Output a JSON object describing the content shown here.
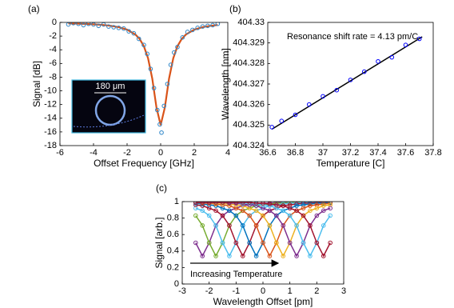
{
  "chart_data": [
    {
      "type": "scatter",
      "label": "(a)",
      "xlabel": "Offset Frequency [GHz]",
      "ylabel": "Signal [dB]",
      "xlim": [
        -6,
        4
      ],
      "xticks": [
        -6,
        -4,
        -2,
        0,
        2,
        4
      ],
      "ylim": [
        -18,
        0
      ],
      "yticks": [
        0,
        -2,
        -4,
        -6,
        -8,
        -10,
        -12,
        -14,
        -16,
        -18
      ],
      "inset_label": "180 μm",
      "series": [
        {
          "type": "line",
          "color": "#d95319",
          "x": [
            -5.5,
            -5,
            -4.5,
            -4,
            -3.5,
            -3,
            -2.5,
            -2,
            -1.5,
            -1.25,
            -1,
            -0.75,
            -0.5,
            -0.25,
            0,
            0.25,
            0.5,
            0.75,
            1,
            1.25,
            1.5,
            2,
            2.5,
            3,
            3.4
          ],
          "values": [
            -0.15,
            -0.18,
            -0.22,
            -0.28,
            -0.36,
            -0.49,
            -0.69,
            -1.06,
            -1.78,
            -2.43,
            -3.48,
            -5.25,
            -8.21,
            -12.43,
            -15,
            -12.43,
            -8.21,
            -5.25,
            -3.48,
            -2.43,
            -1.78,
            -1.06,
            -0.69,
            -0.49,
            -0.38
          ]
        },
        {
          "type": "scatter",
          "color": "#2e86c8",
          "x": [
            -5.5,
            -5.2,
            -4.9,
            -4.6,
            -4.3,
            -4.0,
            -3.7,
            -3.4,
            -3.1,
            -2.8,
            -2.5,
            -2.2,
            -1.9,
            -1.6,
            -1.3,
            -1.0,
            -0.8,
            -0.6,
            -0.4,
            -0.2,
            -0.05,
            0.05,
            0.2,
            0.4,
            0.6,
            0.8,
            1.0,
            1.3,
            1.6,
            1.9,
            2.2,
            2.5,
            2.8,
            3.1,
            3.4
          ],
          "values": [
            -0.3,
            -0.1,
            -0.2,
            -0.4,
            -0.2,
            -0.3,
            -0.5,
            -0.3,
            -0.6,
            -0.7,
            -0.8,
            -0.9,
            -1.3,
            -1.6,
            -2.4,
            -3.3,
            -4.6,
            -6.8,
            -9.6,
            -12.8,
            -14.9,
            -16.1,
            -12.2,
            -9.0,
            -6.2,
            -4.4,
            -3.6,
            -2.2,
            -1.4,
            -1.1,
            -0.8,
            -0.6,
            -0.5,
            -0.4,
            -0.2
          ]
        }
      ]
    },
    {
      "type": "scatter",
      "label": "(b)",
      "xlabel": "Temperature [C]",
      "ylabel": "Wavelength [nm]",
      "xlim": [
        36.6,
        37.8
      ],
      "xticks": [
        36.6,
        36.8,
        37,
        37.2,
        37.4,
        37.6,
        37.8
      ],
      "ylim": [
        404.324,
        404.33
      ],
      "yticks": [
        404.324,
        404.325,
        404.326,
        404.327,
        404.328,
        404.329,
        404.33
      ],
      "annotation": "Resonance shift rate = 4.13 pm/C",
      "series": [
        {
          "type": "line",
          "color": "#000000",
          "x": [
            36.63,
            37.72
          ],
          "values": [
            404.3248,
            404.3293
          ]
        },
        {
          "type": "scatter",
          "color": "#0000ff",
          "x": [
            36.63,
            36.7,
            36.8,
            36.9,
            37.0,
            37.1,
            37.2,
            37.3,
            37.4,
            37.5,
            37.6,
            37.7
          ],
          "values": [
            404.3249,
            404.3252,
            404.3255,
            404.326,
            404.3264,
            404.3267,
            404.3272,
            404.3276,
            404.3281,
            404.3283,
            404.3289,
            404.3292
          ]
        }
      ]
    },
    {
      "type": "line",
      "label": "(c)",
      "xlabel": "Wavelength Offset [pm]",
      "ylabel": "Signal [arb.]",
      "xlim": [
        -3,
        3
      ],
      "xticks": [
        -3,
        -2,
        -1,
        0,
        1,
        2,
        3
      ],
      "ylim": [
        0,
        1
      ],
      "yticks": [
        0,
        0.2,
        0.4,
        0.6,
        0.8,
        1
      ],
      "annotation": "Increasing Temperature",
      "markers": true,
      "x": [
        -2.5,
        -2.25,
        -2,
        -1.75,
        -1.5,
        -1.25,
        -1,
        -0.75,
        -0.5,
        -0.25,
        0,
        0.25,
        0.5,
        0.75,
        1,
        1.25,
        1.5,
        1.75,
        2,
        2.25,
        2.5
      ],
      "series": [
        {
          "color": "#7e2f8e",
          "values": [
            0.5,
            0.34,
            0.5,
            0.71,
            0.83,
            0.89,
            0.92,
            0.95,
            0.96,
            0.97,
            0.98,
            0.98,
            0.99,
            0.99,
            0.99,
            0.99,
            0.99,
            0.99,
            0.99,
            0.99,
            0.99
          ]
        },
        {
          "color": "#77ac30",
          "values": [
            0.83,
            0.71,
            0.5,
            0.34,
            0.5,
            0.71,
            0.83,
            0.89,
            0.92,
            0.95,
            0.96,
            0.97,
            0.98,
            0.98,
            0.99,
            0.99,
            0.99,
            0.99,
            0.99,
            0.99,
            0.99
          ]
        },
        {
          "color": "#4dbeee",
          "values": [
            0.92,
            0.89,
            0.83,
            0.71,
            0.5,
            0.34,
            0.5,
            0.71,
            0.83,
            0.89,
            0.92,
            0.95,
            0.96,
            0.97,
            0.98,
            0.98,
            0.99,
            0.99,
            0.99,
            0.99,
            0.99
          ]
        },
        {
          "color": "#a2142f",
          "values": [
            0.96,
            0.95,
            0.92,
            0.89,
            0.83,
            0.71,
            0.5,
            0.34,
            0.5,
            0.71,
            0.83,
            0.89,
            0.92,
            0.95,
            0.96,
            0.97,
            0.98,
            0.98,
            0.99,
            0.99,
            0.99
          ]
        },
        {
          "color": "#0072bd",
          "values": [
            0.98,
            0.97,
            0.96,
            0.95,
            0.92,
            0.89,
            0.83,
            0.71,
            0.5,
            0.34,
            0.5,
            0.71,
            0.83,
            0.89,
            0.92,
            0.95,
            0.96,
            0.97,
            0.98,
            0.98,
            0.99
          ]
        },
        {
          "color": "#d95319",
          "values": [
            0.99,
            0.98,
            0.98,
            0.97,
            0.96,
            0.95,
            0.92,
            0.89,
            0.83,
            0.71,
            0.5,
            0.34,
            0.5,
            0.71,
            0.83,
            0.89,
            0.92,
            0.95,
            0.96,
            0.97,
            0.98
          ]
        },
        {
          "color": "#edb120",
          "values": [
            0.99,
            0.99,
            0.99,
            0.98,
            0.98,
            0.97,
            0.96,
            0.95,
            0.92,
            0.89,
            0.83,
            0.71,
            0.5,
            0.34,
            0.5,
            0.71,
            0.83,
            0.89,
            0.92,
            0.95,
            0.96
          ]
        },
        {
          "color": "#7e2f8e",
          "values": [
            0.99,
            0.99,
            0.99,
            0.99,
            0.99,
            0.98,
            0.98,
            0.97,
            0.96,
            0.95,
            0.92,
            0.89,
            0.83,
            0.71,
            0.5,
            0.34,
            0.5,
            0.71,
            0.83,
            0.89,
            0.92
          ]
        },
        {
          "color": "#4dbeee",
          "values": [
            0.99,
            0.99,
            0.99,
            0.99,
            0.99,
            0.99,
            0.99,
            0.98,
            0.98,
            0.97,
            0.96,
            0.95,
            0.92,
            0.89,
            0.83,
            0.71,
            0.5,
            0.34,
            0.5,
            0.71,
            0.83
          ]
        },
        {
          "color": "#a2142f",
          "values": [
            0.99,
            0.99,
            0.99,
            0.99,
            0.99,
            0.99,
            0.99,
            0.99,
            0.99,
            0.98,
            0.98,
            0.97,
            0.96,
            0.95,
            0.92,
            0.89,
            0.83,
            0.71,
            0.5,
            0.34,
            0.5
          ]
        }
      ]
    }
  ]
}
